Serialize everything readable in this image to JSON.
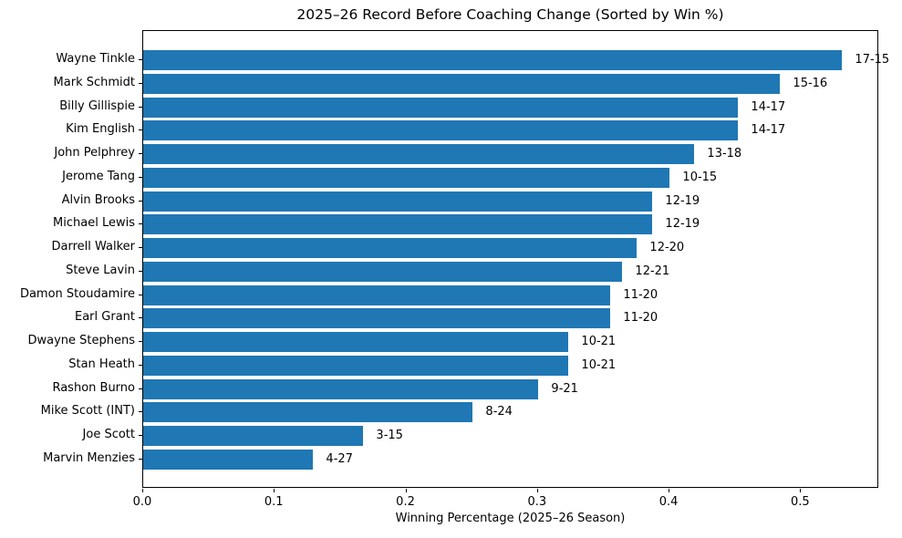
{
  "chart_data": {
    "type": "bar",
    "orientation": "horizontal",
    "title": "2025–26 Record Before Coaching Change (Sorted by Win %)",
    "xlabel": "Winning Percentage (2025–26 Season)",
    "xlim": [
      0,
      0.558
    ],
    "xticks": [
      0.0,
      0.1,
      0.2,
      0.3,
      0.4,
      0.5
    ],
    "xtick_labels": [
      "0.0",
      "0.1",
      "0.2",
      "0.3",
      "0.4",
      "0.5"
    ],
    "grid": false,
    "legend": "none",
    "bar_color": "#1f77b4",
    "categories": [
      "Wayne Tinkle",
      "Mark Schmidt",
      "Billy Gillispie",
      "Kim English",
      "John Pelphrey",
      "Jerome Tang",
      "Alvin Brooks",
      "Michael Lewis",
      "Darrell Walker",
      "Steve Lavin",
      "Damon Stoudamire",
      "Earl Grant",
      "Dwayne Stephens",
      "Stan Heath",
      "Rashon Burno",
      "Mike Scott (INT)",
      "Joe Scott",
      "Marvin Menzies"
    ],
    "values": [
      0.531,
      0.484,
      0.452,
      0.452,
      0.419,
      0.4,
      0.387,
      0.387,
      0.375,
      0.364,
      0.355,
      0.355,
      0.323,
      0.323,
      0.3,
      0.25,
      0.167,
      0.129
    ],
    "bar_labels": [
      "17-15",
      "15-16",
      "14-17",
      "14-17",
      "13-18",
      "10-15",
      "12-19",
      "12-19",
      "12-20",
      "12-21",
      "11-20",
      "11-20",
      "10-21",
      "10-21",
      "9-21",
      "8-24",
      "3-15",
      "4-27"
    ]
  }
}
